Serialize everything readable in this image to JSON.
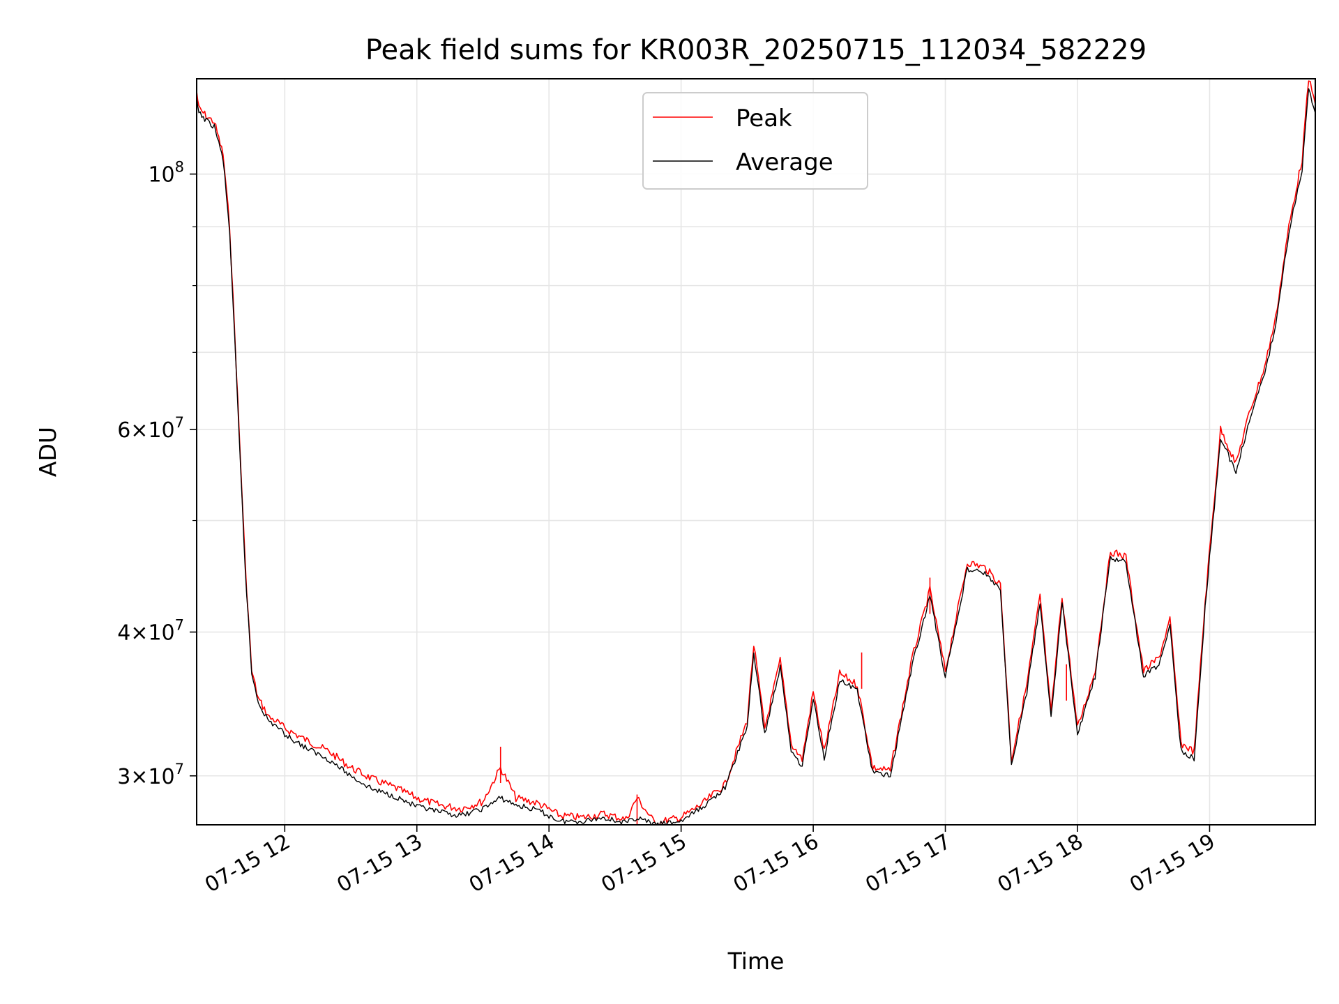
{
  "chart_data": {
    "type": "line",
    "title": "Peak field sums for KR003R_20250715_112034_582229",
    "xlabel": "Time",
    "ylabel": "ADU",
    "yscale": "log",
    "grid": true,
    "legend_placement": "top-center",
    "xlim": [
      "2025-07-15 11:20",
      "2025-07-15 19:48"
    ],
    "ylim": [
      27200000,
      121000000
    ],
    "x_ticks": [
      {
        "value": "2025-07-15 12:00",
        "label": "07-15 12"
      },
      {
        "value": "2025-07-15 13:00",
        "label": "07-15 13"
      },
      {
        "value": "2025-07-15 14:00",
        "label": "07-15 14"
      },
      {
        "value": "2025-07-15 15:00",
        "label": "07-15 15"
      },
      {
        "value": "2025-07-15 16:00",
        "label": "07-15 16"
      },
      {
        "value": "2025-07-15 17:00",
        "label": "07-15 17"
      },
      {
        "value": "2025-07-15 18:00",
        "label": "07-15 18"
      },
      {
        "value": "2025-07-15 19:00",
        "label": "07-15 19"
      }
    ],
    "y_ticks": [
      {
        "value": 30000000,
        "base": "3",
        "exp": "7"
      },
      {
        "value": 40000000,
        "base": "4",
        "exp": "7"
      },
      {
        "value": 60000000,
        "base": "6",
        "exp": "7"
      },
      {
        "value": 100000000,
        "base": "",
        "exp": "8"
      }
    ],
    "y_minor_ticks": [
      50000000,
      70000000,
      80000000,
      90000000
    ],
    "series": [
      {
        "name": "Peak",
        "color": "#ff0000",
        "x": [
          "2025-07-15 11:20",
          "2025-07-15 11:21",
          "2025-07-15 11:25",
          "2025-07-15 11:28",
          "2025-07-15 11:32",
          "2025-07-15 11:35",
          "2025-07-15 11:38",
          "2025-07-15 11:42",
          "2025-07-15 11:45",
          "2025-07-15 11:48",
          "2025-07-15 11:50",
          "2025-07-15 11:53",
          "2025-07-15 11:56",
          "2025-07-15 12:00",
          "2025-07-15 12:10",
          "2025-07-15 12:20",
          "2025-07-15 12:30",
          "2025-07-15 12:40",
          "2025-07-15 12:50",
          "2025-07-15 13:00",
          "2025-07-15 13:10",
          "2025-07-15 13:20",
          "2025-07-15 13:30",
          "2025-07-15 13:38",
          "2025-07-15 13:45",
          "2025-07-15 13:55",
          "2025-07-15 14:05",
          "2025-07-15 14:15",
          "2025-07-15 14:25",
          "2025-07-15 14:35",
          "2025-07-15 14:40",
          "2025-07-15 14:48",
          "2025-07-15 15:00",
          "2025-07-15 15:10",
          "2025-07-15 15:20",
          "2025-07-15 15:30",
          "2025-07-15 15:33",
          "2025-07-15 15:38",
          "2025-07-15 15:45",
          "2025-07-15 15:50",
          "2025-07-15 15:55",
          "2025-07-15 16:00",
          "2025-07-15 16:05",
          "2025-07-15 16:12",
          "2025-07-15 16:20",
          "2025-07-15 16:27",
          "2025-07-15 16:35",
          "2025-07-15 16:45",
          "2025-07-15 16:53",
          "2025-07-15 17:00",
          "2025-07-15 17:10",
          "2025-07-15 17:18",
          "2025-07-15 17:25",
          "2025-07-15 17:30",
          "2025-07-15 17:37",
          "2025-07-15 17:43",
          "2025-07-15 17:48",
          "2025-07-15 17:53",
          "2025-07-15 18:00",
          "2025-07-15 18:08",
          "2025-07-15 18:15",
          "2025-07-15 18:22",
          "2025-07-15 18:30",
          "2025-07-15 18:37",
          "2025-07-15 18:42",
          "2025-07-15 18:47",
          "2025-07-15 18:53",
          "2025-07-15 18:58",
          "2025-07-15 19:00",
          "2025-07-15 19:05",
          "2025-07-15 19:12",
          "2025-07-15 19:18",
          "2025-07-15 19:25",
          "2025-07-15 19:30",
          "2025-07-15 19:36",
          "2025-07-15 19:42",
          "2025-07-15 19:45",
          "2025-07-15 19:48"
        ],
        "y": [
          118000000,
          114000000,
          112000000,
          111000000,
          104000000,
          90000000,
          68000000,
          46000000,
          37000000,
          35000000,
          34500000,
          33700000,
          33500000,
          33000000,
          32200000,
          31500000,
          30500000,
          29800000,
          29300000,
          28700000,
          28300000,
          28100000,
          28500000,
          30500000,
          28700000,
          28400000,
          27700000,
          27600000,
          27800000,
          27500000,
          28700000,
          27300000,
          27600000,
          28400000,
          29500000,
          33500000,
          39000000,
          33000000,
          37800000,
          32000000,
          31000000,
          35500000,
          31500000,
          36800000,
          36000000,
          30500000,
          30300000,
          38000000,
          43500000,
          37000000,
          46000000,
          45500000,
          44000000,
          31000000,
          36000000,
          43000000,
          34000000,
          43000000,
          33000000,
          37000000,
          47000000,
          46500000,
          37000000,
          38000000,
          41000000,
          32000000,
          31500000,
          42500000,
          47000000,
          60000000,
          56000000,
          62000000,
          68000000,
          75000000,
          90000000,
          103000000,
          121000000,
          115000000
        ],
        "spikes": [
          {
            "x": "2025-07-15 13:38",
            "y": 31800000
          },
          {
            "x": "2025-07-15 14:40",
            "y": 28900000
          },
          {
            "x": "2025-07-15 16:22",
            "y": 38400000
          },
          {
            "x": "2025-07-15 16:53",
            "y": 44600000
          },
          {
            "x": "2025-07-15 17:55",
            "y": 37500000
          }
        ]
      },
      {
        "name": "Average",
        "color": "#000000",
        "x": [
          "2025-07-15 11:20",
          "2025-07-15 11:21",
          "2025-07-15 11:25",
          "2025-07-15 11:28",
          "2025-07-15 11:32",
          "2025-07-15 11:35",
          "2025-07-15 11:38",
          "2025-07-15 11:42",
          "2025-07-15 11:45",
          "2025-07-15 11:48",
          "2025-07-15 11:50",
          "2025-07-15 11:53",
          "2025-07-15 11:56",
          "2025-07-15 12:00",
          "2025-07-15 12:10",
          "2025-07-15 12:20",
          "2025-07-15 12:30",
          "2025-07-15 12:40",
          "2025-07-15 12:50",
          "2025-07-15 13:00",
          "2025-07-15 13:10",
          "2025-07-15 13:20",
          "2025-07-15 13:30",
          "2025-07-15 13:38",
          "2025-07-15 13:45",
          "2025-07-15 13:55",
          "2025-07-15 14:05",
          "2025-07-15 14:15",
          "2025-07-15 14:25",
          "2025-07-15 14:35",
          "2025-07-15 14:40",
          "2025-07-15 14:48",
          "2025-07-15 15:00",
          "2025-07-15 15:10",
          "2025-07-15 15:20",
          "2025-07-15 15:30",
          "2025-07-15 15:33",
          "2025-07-15 15:38",
          "2025-07-15 15:45",
          "2025-07-15 15:50",
          "2025-07-15 15:55",
          "2025-07-15 16:00",
          "2025-07-15 16:05",
          "2025-07-15 16:12",
          "2025-07-15 16:20",
          "2025-07-15 16:27",
          "2025-07-15 16:35",
          "2025-07-15 16:45",
          "2025-07-15 16:53",
          "2025-07-15 17:00",
          "2025-07-15 17:10",
          "2025-07-15 17:18",
          "2025-07-15 17:25",
          "2025-07-15 17:30",
          "2025-07-15 17:37",
          "2025-07-15 17:43",
          "2025-07-15 17:48",
          "2025-07-15 17:53",
          "2025-07-15 18:00",
          "2025-07-15 18:08",
          "2025-07-15 18:15",
          "2025-07-15 18:22",
          "2025-07-15 18:30",
          "2025-07-15 18:37",
          "2025-07-15 18:42",
          "2025-07-15 18:47",
          "2025-07-15 18:53",
          "2025-07-15 18:58",
          "2025-07-15 19:00",
          "2025-07-15 19:05",
          "2025-07-15 19:12",
          "2025-07-15 19:18",
          "2025-07-15 19:25",
          "2025-07-15 19:30",
          "2025-07-15 19:36",
          "2025-07-15 19:42",
          "2025-07-15 19:45",
          "2025-07-15 19:48"
        ],
        "y": [
          116000000,
          113000000,
          111000000,
          110000000,
          103000000,
          89000000,
          67000000,
          45500000,
          36800000,
          34800000,
          34200000,
          33400000,
          33200000,
          32600000,
          31700000,
          31000000,
          30000000,
          29200000,
          28800000,
          28200000,
          27900000,
          27700000,
          28100000,
          28700000,
          28300000,
          28000000,
          27400000,
          27400000,
          27600000,
          27300000,
          27600000,
          27200000,
          27400000,
          28200000,
          29300000,
          33100000,
          38400000,
          32600000,
          37300000,
          31600000,
          30600000,
          35000000,
          31100000,
          36300000,
          35600000,
          30200000,
          30000000,
          37500000,
          43000000,
          36600000,
          45400000,
          45000000,
          43500000,
          30600000,
          35500000,
          42500000,
          33600000,
          42500000,
          32600000,
          36600000,
          46400000,
          46000000,
          36600000,
          37500000,
          40500000,
          31600000,
          31000000,
          42000000,
          46400000,
          59000000,
          55000000,
          61000000,
          67000000,
          74000000,
          89000000,
          101000000,
          119000000,
          113000000
        ]
      }
    ]
  }
}
